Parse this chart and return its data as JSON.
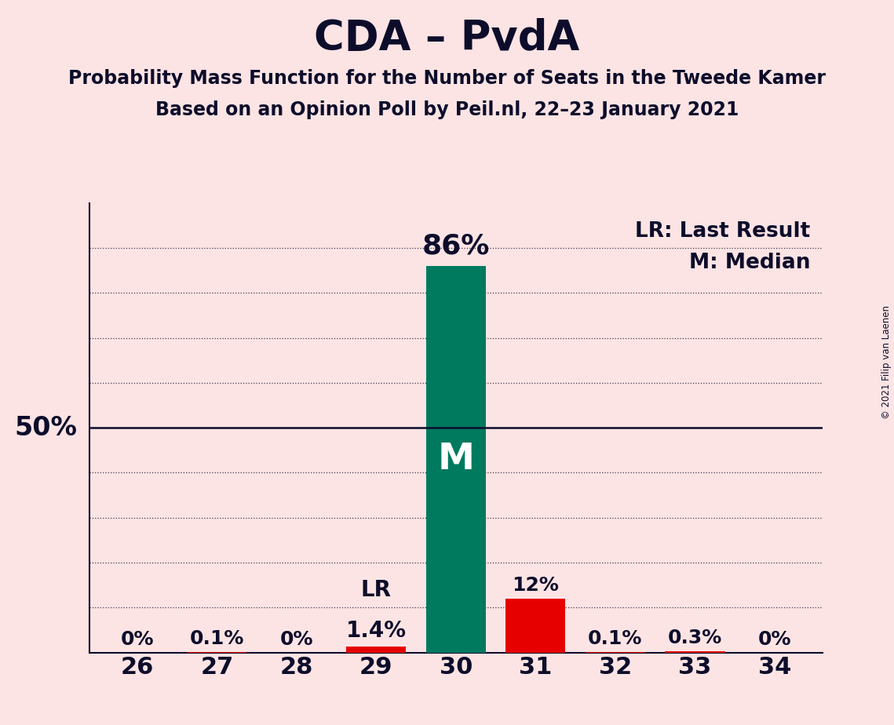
{
  "title": "CDA – PvdA",
  "subtitle1": "Probability Mass Function for the Number of Seats in the Tweede Kamer",
  "subtitle2": "Based on an Opinion Poll by Peil.nl, 22–23 January 2021",
  "copyright": "© 2021 Filip van Laenen",
  "categories": [
    26,
    27,
    28,
    29,
    30,
    31,
    32,
    33,
    34
  ],
  "values": [
    0.0,
    0.1,
    0.0,
    1.4,
    86.0,
    12.0,
    0.1,
    0.3,
    0.0
  ],
  "labels": [
    "0%",
    "0.1%",
    "0%",
    "1.4%",
    "86%",
    "12%",
    "0.1%",
    "0.3%",
    "0%"
  ],
  "bar_colors": [
    "#e60000",
    "#e60000",
    "#e60000",
    "#e60000",
    "#007a5e",
    "#e60000",
    "#e60000",
    "#e60000",
    "#e60000"
  ],
  "median_bar_index": 4,
  "lr_bar_index": 3,
  "median_label": "M",
  "lr_label": "LR",
  "background_color": "#fce4e4",
  "bar_color_median": "#007a5e",
  "bar_color_default": "#e60000",
  "ylim": [
    0,
    100
  ],
  "ytick_value": 50,
  "legend_text1": "LR: Last Result",
  "legend_text2": "M: Median",
  "ylabel_50": "50%",
  "title_fontsize": 38,
  "subtitle_fontsize": 17,
  "label_fontsize_large": 26,
  "label_fontsize_medium": 20,
  "label_fontsize_small": 18,
  "tick_fontsize": 22,
  "legend_fontsize": 19,
  "ylabel_fontsize": 24,
  "M_fontsize": 34,
  "dotted_yticks": [
    10,
    20,
    30,
    40,
    50,
    60,
    70,
    80,
    90
  ],
  "text_color": "#0d0d2b",
  "bar_width": 0.75
}
